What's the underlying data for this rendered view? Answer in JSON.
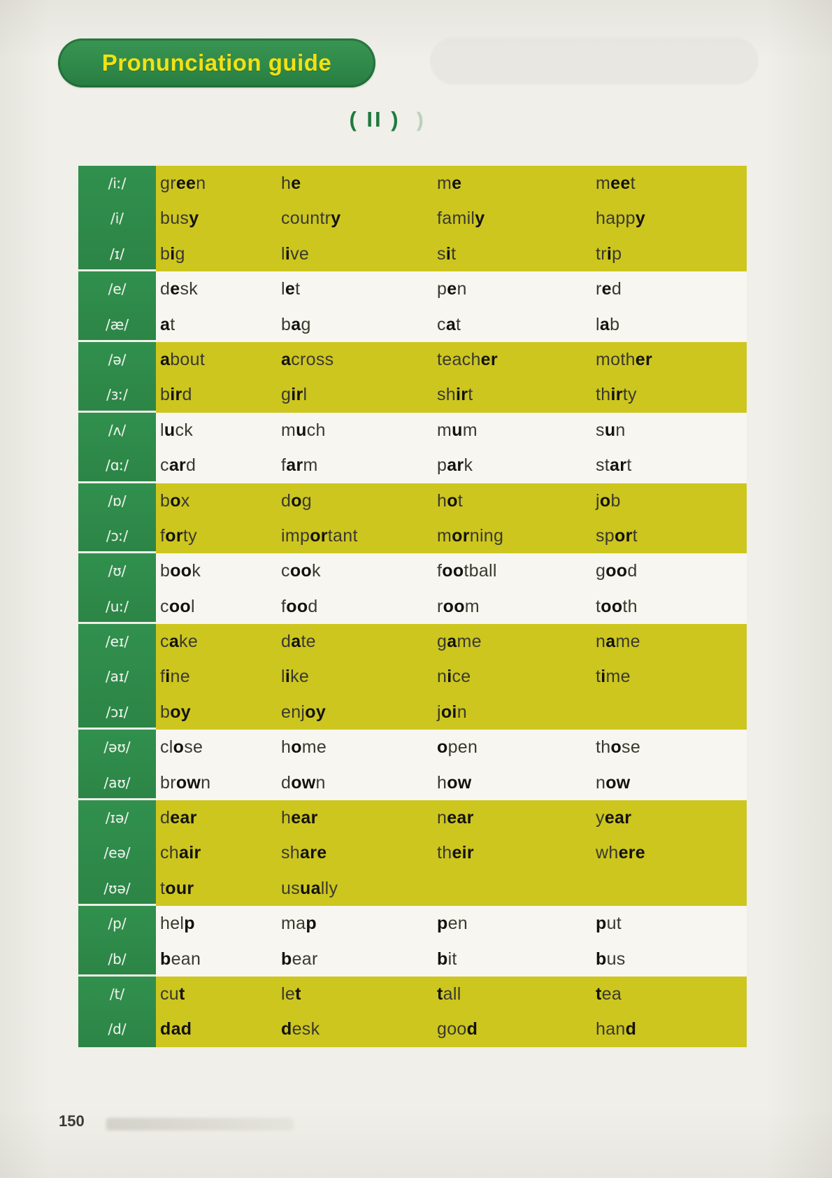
{
  "page": {
    "header_label": "Pronunciation guide",
    "section_label": "( II )",
    "ghost_mark": ")",
    "page_number": "150"
  },
  "colors": {
    "badge_green": "#2f8a4a",
    "badge_text_yellow": "#f2e113",
    "symbol_column_green": "#2f8c4b",
    "band_yellow": "#cdc61e",
    "band_white": "#f7f6f0",
    "section_label_green": "#1e7a3e"
  },
  "table": {
    "groups": [
      {
        "bg": "yellow",
        "rows": [
          {
            "symbol": "/iː/",
            "words": [
              "gr*ee*n",
              "h*e*",
              "m*e*",
              "m*ee*t"
            ]
          },
          {
            "symbol": "/i/",
            "words": [
              "bus*y*",
              "countr*y*",
              "famil*y*",
              "happ*y*"
            ]
          },
          {
            "symbol": "/ɪ/",
            "words": [
              "b*i*g",
              "l*i*ve",
              "s*i*t",
              "tr*i*p"
            ]
          }
        ]
      },
      {
        "bg": "white",
        "rows": [
          {
            "symbol": "/e/",
            "words": [
              "d*e*sk",
              "l*e*t",
              "p*e*n",
              "r*e*d"
            ]
          },
          {
            "symbol": "/æ/",
            "words": [
              "*a*t",
              "b*a*g",
              "c*a*t",
              "l*a*b"
            ]
          }
        ]
      },
      {
        "bg": "yellow",
        "rows": [
          {
            "symbol": "/ə/",
            "words": [
              "*a*bout",
              "*a*cross",
              "teach*er*",
              "moth*er*"
            ]
          },
          {
            "symbol": "/ɜː/",
            "words": [
              "b*ir*d",
              "g*ir*l",
              "sh*ir*t",
              "th*ir*ty"
            ]
          }
        ]
      },
      {
        "bg": "white",
        "rows": [
          {
            "symbol": "/ʌ/",
            "words": [
              "l*u*ck",
              "m*u*ch",
              "m*u*m",
              "s*u*n"
            ]
          },
          {
            "symbol": "/ɑː/",
            "words": [
              "c*ar*d",
              "f*ar*m",
              "p*ar*k",
              "st*ar*t"
            ]
          }
        ]
      },
      {
        "bg": "yellow",
        "rows": [
          {
            "symbol": "/ɒ/",
            "words": [
              "b*o*x",
              "d*o*g",
              "h*o*t",
              "j*o*b"
            ]
          },
          {
            "symbol": "/ɔː/",
            "words": [
              "f*or*ty",
              "imp*or*tant",
              "m*or*ning",
              "sp*or*t"
            ]
          }
        ]
      },
      {
        "bg": "white",
        "rows": [
          {
            "symbol": "/ʊ/",
            "words": [
              "b*oo*k",
              "c*oo*k",
              "f*oo*tball",
              "g*oo*d"
            ]
          },
          {
            "symbol": "/uː/",
            "words": [
              "c*oo*l",
              "f*oo*d",
              "r*oo*m",
              "t*oo*th"
            ]
          }
        ]
      },
      {
        "bg": "yellow",
        "rows": [
          {
            "symbol": "/eɪ/",
            "words": [
              "c*a*ke",
              "d*a*te",
              "g*a*me",
              "n*a*me"
            ]
          },
          {
            "symbol": "/aɪ/",
            "words": [
              "f*i*ne",
              "l*i*ke",
              "n*i*ce",
              "t*i*me"
            ]
          },
          {
            "symbol": "/ɔɪ/",
            "words": [
              "b*oy*",
              "enj*oy*",
              "j*oi*n",
              ""
            ]
          }
        ]
      },
      {
        "bg": "white",
        "rows": [
          {
            "symbol": "/əʊ/",
            "words": [
              "cl*o*se",
              "h*o*me",
              "*o*pen",
              "th*o*se"
            ]
          },
          {
            "symbol": "/aʊ/",
            "words": [
              "br*ow*n",
              "d*ow*n",
              "h*ow*",
              "n*ow*"
            ]
          }
        ]
      },
      {
        "bg": "yellow",
        "rows": [
          {
            "symbol": "/ɪə/",
            "words": [
              "d*ear*",
              "h*ear*",
              "n*ear*",
              "y*ear*"
            ]
          },
          {
            "symbol": "/eə/",
            "words": [
              "ch*air*",
              "sh*are*",
              "th*eir*",
              "wh*ere*"
            ]
          },
          {
            "symbol": "/ʊə/",
            "words": [
              "t*our*",
              "us*ua*lly",
              "",
              ""
            ]
          }
        ]
      },
      {
        "bg": "white",
        "rows": [
          {
            "symbol": "/p/",
            "words": [
              "hel*p*",
              "ma*p*",
              "*p*en",
              "*p*ut"
            ]
          },
          {
            "symbol": "/b/",
            "words": [
              "*b*ean",
              "*b*ear",
              "*b*it",
              "*b*us"
            ]
          }
        ]
      },
      {
        "bg": "yellow",
        "rows": [
          {
            "symbol": "/t/",
            "words": [
              "cu*t*",
              "le*t*",
              "*t*all",
              "*t*ea"
            ]
          },
          {
            "symbol": "/d/",
            "words": [
              "*dad*",
              "*d*esk",
              "goo*d*",
              "han*d*"
            ]
          }
        ]
      }
    ]
  }
}
